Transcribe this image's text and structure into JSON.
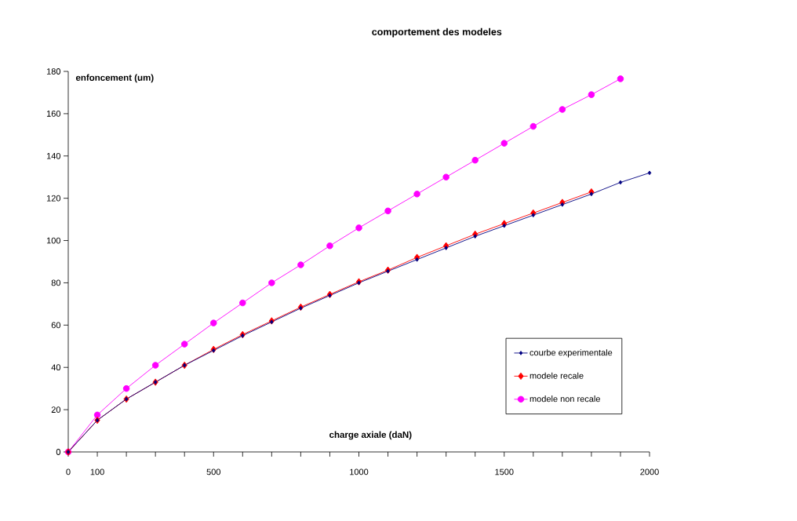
{
  "chart_data": {
    "type": "line",
    "title": "comportement des modeles",
    "xlabel": "charge axiale (daN)",
    "ylabel": "enfoncement (um)",
    "x": [
      0,
      100,
      200,
      300,
      400,
      500,
      600,
      700,
      800,
      900,
      1000,
      1100,
      1200,
      1300,
      1400,
      1500,
      1600,
      1700,
      1800,
      1900,
      2000
    ],
    "series": [
      {
        "name": "courbe experimentale",
        "color": "#000080",
        "marker": "diamond",
        "values": [
          0,
          15,
          25,
          33,
          41,
          48,
          55,
          61.5,
          68,
          74,
          80,
          85.5,
          91,
          96.5,
          102,
          107,
          112,
          117,
          122,
          127.5,
          132
        ]
      },
      {
        "name": "modele recale",
        "color": "#ff0000",
        "marker": "diamond",
        "values": [
          0,
          15,
          25,
          33,
          41,
          48.5,
          55.5,
          62,
          68.5,
          74.5,
          80.5,
          86,
          92,
          97.5,
          103,
          108,
          113,
          118,
          123,
          null,
          null
        ]
      },
      {
        "name": "modele non recale",
        "color": "#ff00ff",
        "marker": "circle",
        "values": [
          0,
          17.5,
          30,
          41,
          51,
          61,
          70.5,
          80,
          88.5,
          97.5,
          106,
          114,
          122,
          130,
          138,
          146,
          154,
          162,
          169,
          176.5,
          null
        ]
      }
    ],
    "xlim": [
      0,
      2000
    ],
    "ylim": [
      0,
      180
    ],
    "xticks": [
      0,
      100,
      {
        "value": 200,
        "label": null
      },
      {
        "value": 300,
        "label": null
      },
      {
        "value": 400,
        "label": null
      },
      500,
      {
        "value": 600,
        "label": null
      },
      {
        "value": 700,
        "label": null
      },
      {
        "value": 800,
        "label": null
      },
      {
        "value": 900,
        "label": null
      },
      1000,
      {
        "value": 1100,
        "label": null
      },
      {
        "value": 1200,
        "label": null
      },
      {
        "value": 1300,
        "label": null
      },
      {
        "value": 1400,
        "label": null
      },
      1500,
      {
        "value": 1600,
        "label": null
      },
      {
        "value": 1700,
        "label": null
      },
      {
        "value": 1800,
        "label": null
      },
      {
        "value": 1900,
        "label": null
      },
      2000
    ],
    "yticks": [
      0,
      20,
      40,
      60,
      80,
      100,
      120,
      140,
      160,
      180
    ],
    "grid": false,
    "legend": "bottom right",
    "line_style": "solid"
  }
}
